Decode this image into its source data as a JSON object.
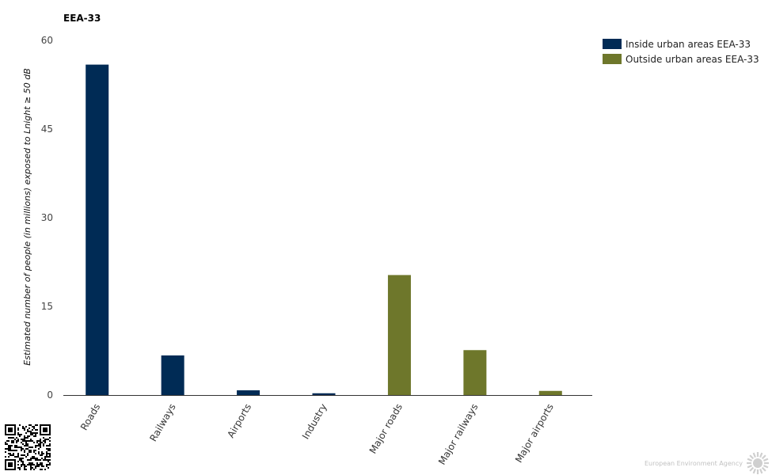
{
  "chart_data": {
    "type": "bar",
    "title": "EEA-33",
    "ylabel": "Estimated number of people (in millions) exposed to Lnight ≥ 50 dB",
    "xlabel": "",
    "ylim": [
      0,
      60
    ],
    "yticks": [
      0,
      15,
      30,
      45,
      60
    ],
    "categories": [
      "Roads",
      "Railways",
      "Airports",
      "Industry",
      "Major roads",
      "Major railways",
      "Major airports"
    ],
    "series": [
      {
        "name": "Inside urban areas EEA-33",
        "color": "#002b55",
        "values": [
          55.9,
          6.7,
          0.8,
          0.3,
          null,
          null,
          null
        ]
      },
      {
        "name": "Outside urban areas EEA-33",
        "color": "#6e772b",
        "values": [
          null,
          null,
          null,
          null,
          20.3,
          7.6,
          0.7
        ]
      }
    ],
    "legend_position": "top-right",
    "grid": false
  },
  "footer": {
    "logo_text": "European Environment Agency",
    "qr_icon": "qr-code-icon",
    "logo_icon": "eea-sun-icon"
  }
}
